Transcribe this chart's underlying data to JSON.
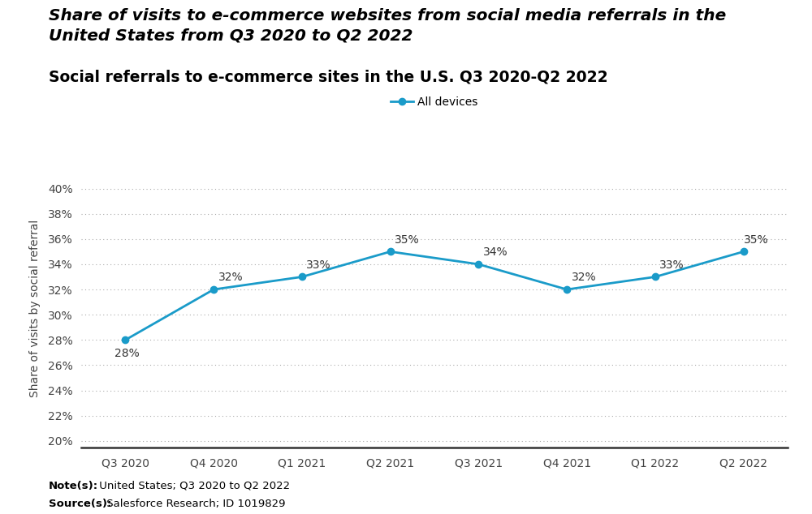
{
  "title_line1": "Share of visits to e-commerce websites from social media referrals in the",
  "title_line2": "United States from Q3 2020 to Q2 2022",
  "subtitle": "Social referrals to e-commerce sites in the U.S. Q3 2020-Q2 2022",
  "categories": [
    "Q3 2020",
    "Q4 2020",
    "Q1 2021",
    "Q2 2021",
    "Q3 2021",
    "Q4 2021",
    "Q1 2022",
    "Q2 2022"
  ],
  "values": [
    28,
    32,
    33,
    35,
    34,
    32,
    33,
    35
  ],
  "line_color": "#1a9bc9",
  "marker_style": "o",
  "marker_size": 6,
  "legend_label": "All devices",
  "ylabel": "Share of visits by social referral",
  "yticks": [
    20,
    22,
    24,
    26,
    28,
    30,
    32,
    34,
    36,
    38,
    40
  ],
  "ylim": [
    19.5,
    41.5
  ],
  "note_bold": "Note(s):",
  "note_rest": " United States; Q3 2020 to Q2 2022",
  "source_bold": "Source(s):",
  "source_rest": " Salesforce Research; ID 1019829",
  "background_color": "#ffffff",
  "title_fontsize": 14.5,
  "subtitle_fontsize": 13.5,
  "label_fontsize": 10,
  "tick_fontsize": 10,
  "note_fontsize": 9.5
}
